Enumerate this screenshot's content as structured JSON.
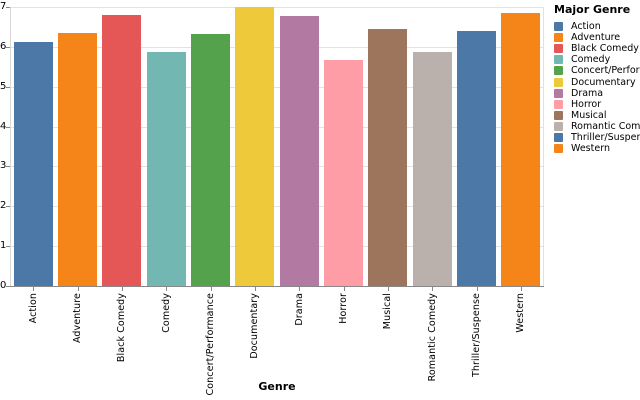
{
  "chart_data": {
    "type": "bar",
    "title": "",
    "xlabel": "Genre",
    "ylabel": "",
    "ylim": [
      0,
      7
    ],
    "yticks": [
      0,
      1,
      2,
      3,
      4,
      5,
      6,
      7
    ],
    "grid": true,
    "categories": [
      "Action",
      "Adventure",
      "Black Comedy",
      "Comedy",
      "Concert/Performance",
      "Documentary",
      "Drama",
      "Horror",
      "Musical",
      "Romantic Comedy",
      "Thriller/Suspense",
      "Western"
    ],
    "values": [
      6.11,
      6.35,
      6.81,
      5.86,
      6.32,
      7.0,
      6.77,
      5.67,
      6.45,
      5.87,
      6.39,
      6.84
    ],
    "bar_colors": [
      "#4c78a8",
      "#f58518",
      "#e45756",
      "#72b7b2",
      "#54a24b",
      "#eeca3b",
      "#b279a2",
      "#ff9da6",
      "#9d755d",
      "#bab0ac",
      "#4c78a8",
      "#f58518"
    ],
    "legend": {
      "title": "Major Genre",
      "position": "right",
      "items": [
        {
          "label": "Action",
          "color": "#4c78a8"
        },
        {
          "label": "Adventure",
          "color": "#f58518"
        },
        {
          "label": "Black Comedy",
          "color": "#e45756"
        },
        {
          "label": "Comedy",
          "color": "#72b7b2"
        },
        {
          "label": "Concert/Performance",
          "color": "#54a24b"
        },
        {
          "label": "Documentary",
          "color": "#eeca3b"
        },
        {
          "label": "Drama",
          "color": "#b279a2"
        },
        {
          "label": "Horror",
          "color": "#ff9da6"
        },
        {
          "label": "Musical",
          "color": "#9d755d"
        },
        {
          "label": "Romantic Comedy",
          "color": "#bab0ac"
        },
        {
          "label": "Thriller/Suspense",
          "color": "#4c78a8"
        },
        {
          "label": "Western",
          "color": "#f58518"
        }
      ]
    },
    "style_colors": {
      "axis_domain": "#888888",
      "gridline": "#e2e2e2",
      "text": "#000000",
      "background": "#ffffff"
    }
  }
}
